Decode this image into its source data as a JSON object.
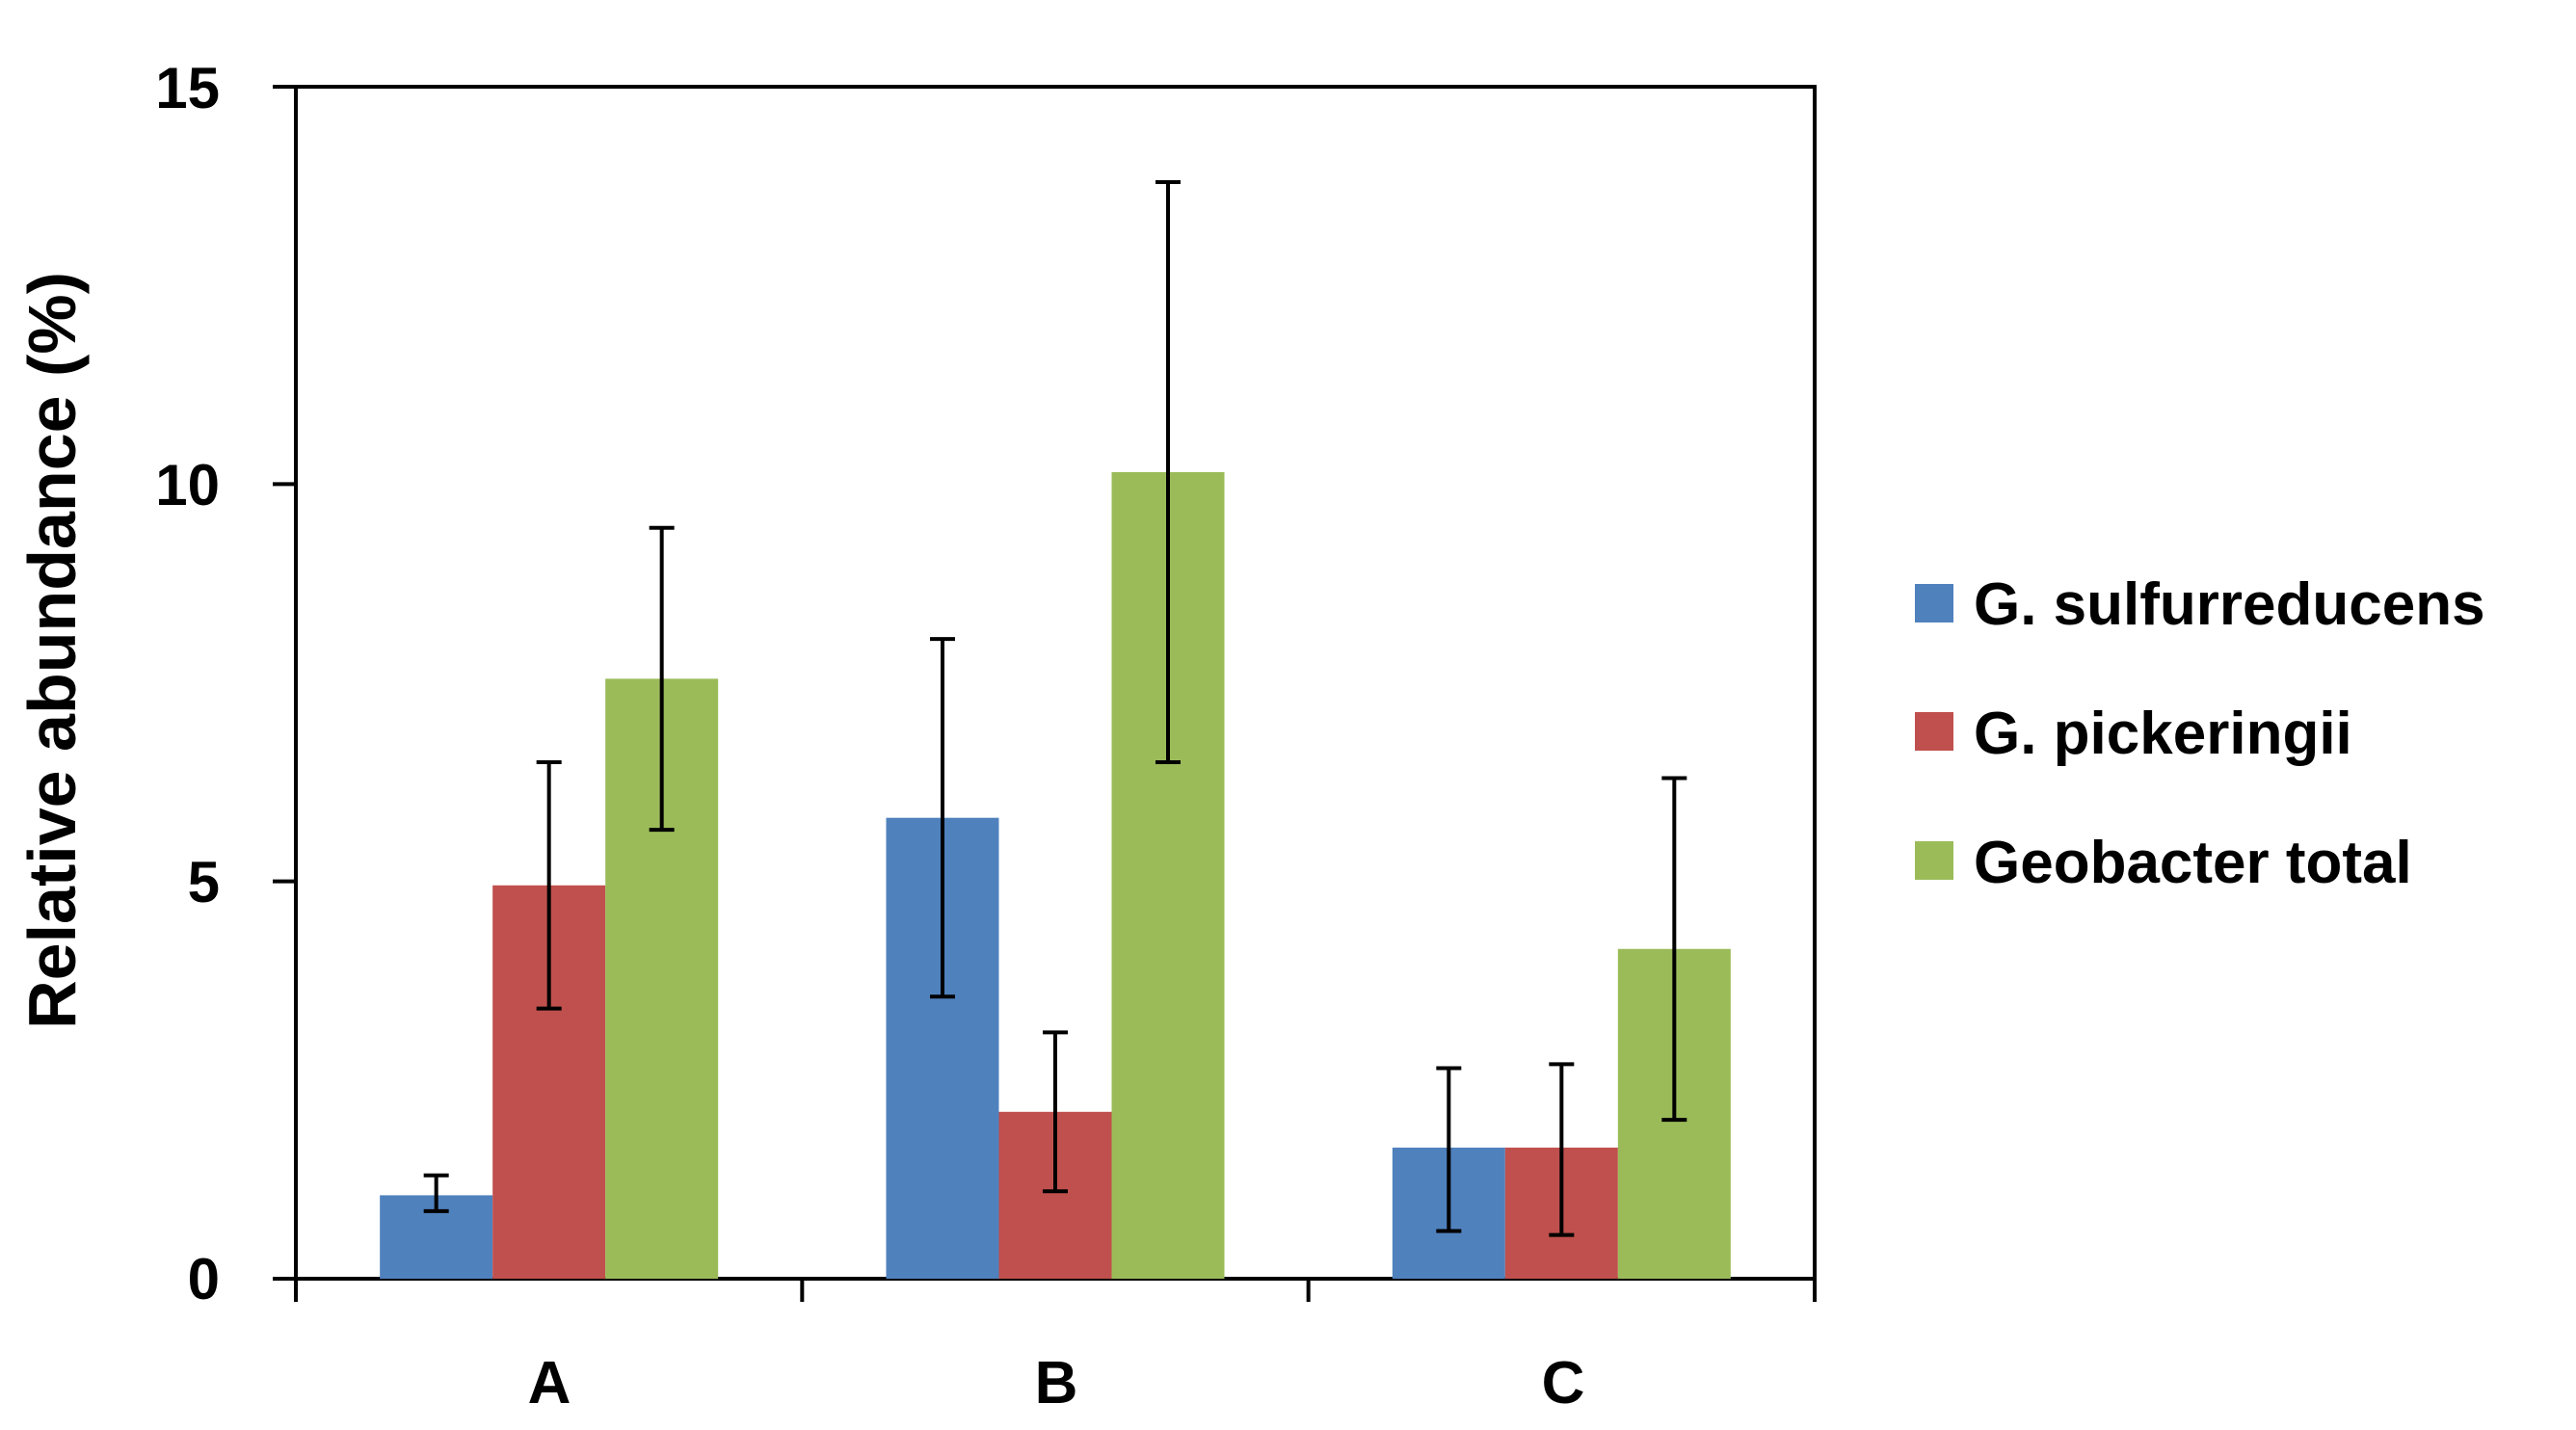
{
  "chart_data": {
    "type": "bar",
    "title": "",
    "xlabel": "",
    "ylabel": "Relative abundance (%)",
    "ylim": [
      0,
      15
    ],
    "yticks": [
      0,
      5,
      10,
      15
    ],
    "ytick_labels": [
      "0",
      "5",
      "10",
      "15"
    ],
    "grid": false,
    "legend_position": "right",
    "categories": [
      "A",
      "B",
      "C"
    ],
    "series": [
      {
        "name": "G. sulfurreducens",
        "color": "#4F81BD",
        "values": [
          1.05,
          5.8,
          1.65
        ],
        "err_low": [
          0.85,
          3.55,
          0.6
        ],
        "err_high": [
          1.3,
          8.05,
          2.65
        ]
      },
      {
        "name": "G. pickeringii",
        "color": "#C0504D",
        "values": [
          4.95,
          2.1,
          1.65
        ],
        "err_low": [
          3.4,
          1.1,
          0.55
        ],
        "err_high": [
          6.5,
          3.1,
          2.7
        ]
      },
      {
        "name": "Geobacter total",
        "color": "#9BBB59",
        "values": [
          7.55,
          10.15,
          4.15
        ],
        "err_low": [
          5.65,
          6.5,
          2.0
        ],
        "err_high": [
          9.45,
          13.8,
          6.3
        ]
      }
    ]
  }
}
